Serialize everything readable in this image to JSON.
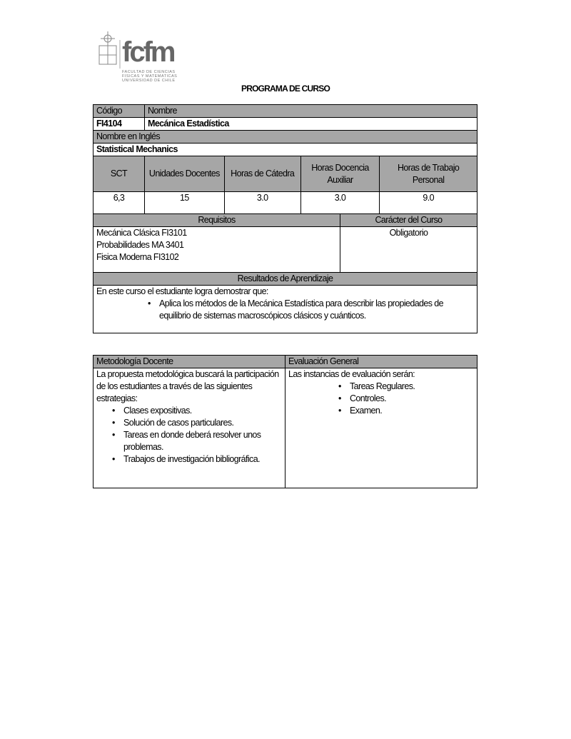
{
  "logo": {
    "text": "fcfm",
    "subtitle": [
      "FACULTAD DE CIENCIAS",
      "FISICAS Y MATEMATICAS",
      "UNIVERSIDAD DE CHILE"
    ],
    "accent": "#e2231a"
  },
  "title": "PROGRAMA DE CURSO",
  "course": {
    "code_label": "Código",
    "name_label": "Nombre",
    "code": "FI4104",
    "name": "Mecánica Estadística",
    "english_label": "Nombre en Inglés",
    "english_name": "Statistical Mechanics"
  },
  "hours": {
    "headers": [
      "SCT",
      "Unidades Docentes",
      "Horas de Cátedra",
      "Horas Docencia Auxiliar",
      "Horas de Trabajo Personal"
    ],
    "values": [
      "6,3",
      "15",
      "3.0",
      "3.0",
      "9.0"
    ]
  },
  "requisitos": {
    "label": "Requisitos",
    "items": [
      "Mecánica Clásica FI3101",
      "Probabilidades MA 3401",
      "Fisica Moderna FI3102"
    ]
  },
  "caracter": {
    "label": "Carácter del Curso",
    "value": "Obligatorio"
  },
  "resultados": {
    "label": "Resultados de Aprendizaje",
    "intro": "En este curso el estudiante logra demostrar que:",
    "items": [
      "Aplica los métodos de la Mecánica Estadística para describir las propiedades de equilibrio de sistemas macroscópicos clásicos y cuánticos."
    ]
  },
  "metodologia": {
    "label": "Metodología Docente",
    "intro": "La propuesta metodológica buscará la participación de los estudiantes a través de las siguientes estrategias:",
    "items": [
      "Clases expositivas.",
      "Solución de casos particulares.",
      "Tareas en donde deberá resolver unos problemas.",
      "Trabajos de investigación bibliográfica."
    ]
  },
  "evaluacion": {
    "label": "Evaluación General",
    "intro": "Las instancias de evaluación serán:",
    "items": [
      "Tareas Regulares.",
      "Controles.",
      "Examen."
    ]
  }
}
